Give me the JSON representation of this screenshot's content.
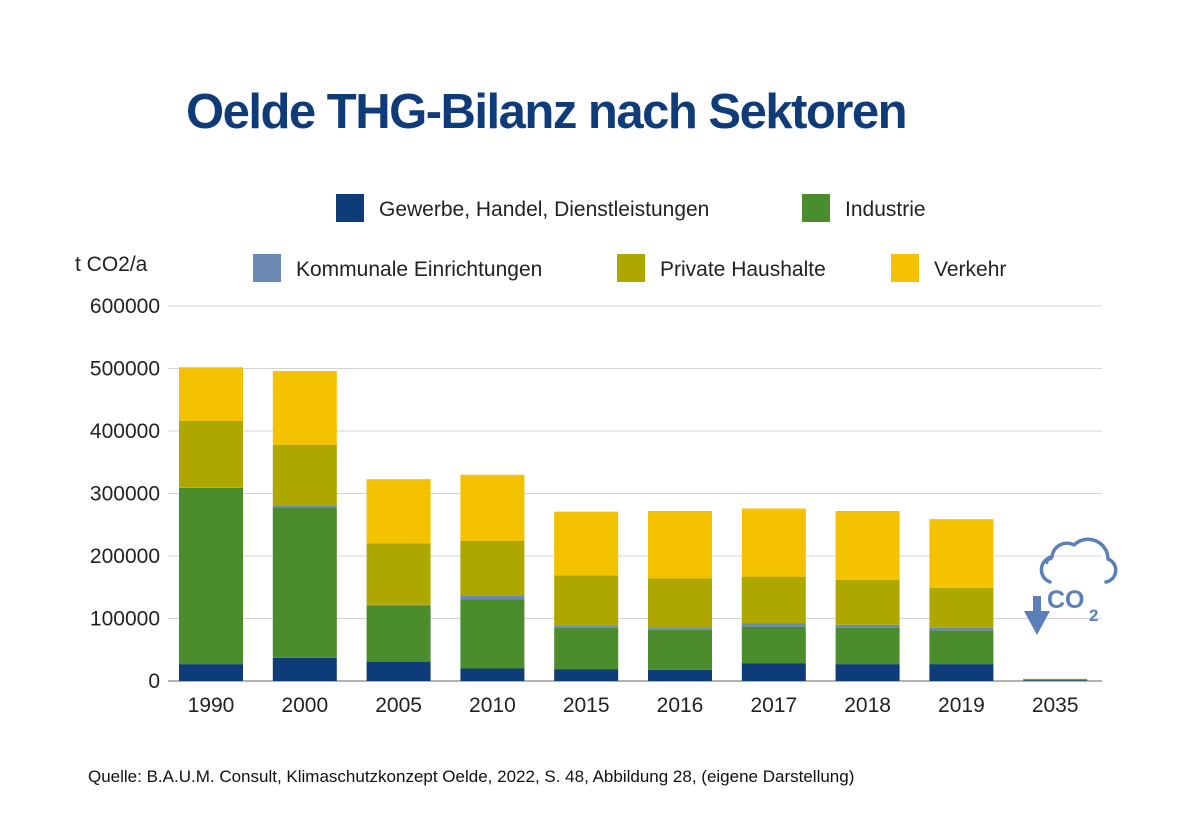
{
  "chart_data": {
    "type": "bar",
    "stacked": true,
    "title": "Oelde THG-Bilanz nach Sektoren",
    "ylabel": "t CO2/a",
    "xlabel": "",
    "ylim": [
      0,
      600000
    ],
    "yticks": [
      "0",
      "100000",
      "200000",
      "300000",
      "400000",
      "500000",
      "600000"
    ],
    "categories": [
      "1990",
      "2000",
      "2005",
      "2010",
      "2015",
      "2016",
      "2017",
      "2018",
      "2019",
      "2035"
    ],
    "series": [
      {
        "name": "Gewerbe, Handel, Dienstleistungen",
        "color": "#0d3c78",
        "values": [
          27000,
          37000,
          31000,
          20000,
          19000,
          18000,
          28000,
          27000,
          27000,
          1000
        ]
      },
      {
        "name": "Industrie",
        "color": "#4b8c2c",
        "values": [
          282000,
          241000,
          89000,
          111000,
          66000,
          64000,
          59000,
          59000,
          54000,
          1500
        ]
      },
      {
        "name": "Kommunale Einrichtungen",
        "color": "#6a8ab5",
        "values": [
          1000,
          3000,
          2000,
          5000,
          4000,
          4000,
          5000,
          4000,
          4000,
          0
        ]
      },
      {
        "name": "Private Haushalte",
        "color": "#aea700",
        "values": [
          106000,
          97000,
          98000,
          88000,
          80000,
          78000,
          75000,
          72000,
          64000,
          1000
        ]
      },
      {
        "name": "Verkehr",
        "color": "#f4c200",
        "values": [
          86000,
          118000,
          103000,
          106000,
          102000,
          108000,
          109000,
          110000,
          110000,
          0
        ]
      }
    ],
    "legend_position": "top",
    "grid": true
  },
  "source": "Quelle: B.A.U.M. Consult, Klimaschutzkonzept Oelde, 2022, S. 48, Abbildung 28, (eigene Darstellung)",
  "co2_icon": {
    "name": "cloud-co2-down-icon",
    "label": "CO",
    "subscript": "2",
    "color": "#5b80b8"
  }
}
